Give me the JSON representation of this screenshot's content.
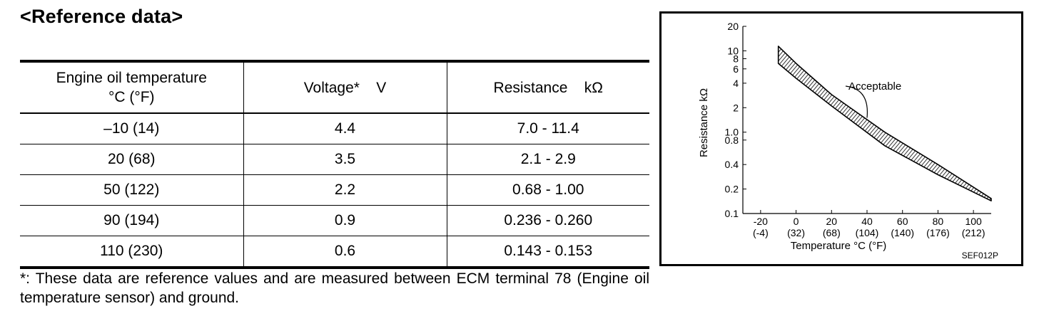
{
  "heading": "<Reference data>",
  "table": {
    "headers": [
      {
        "line1": "Engine oil temperature",
        "line2": "°C (°F)"
      },
      {
        "line1": "Voltage*    V",
        "line2": ""
      },
      {
        "line1": "Resistance    kΩ",
        "line2": ""
      }
    ],
    "rows": [
      {
        "temp": "–10 (14)",
        "voltage": "4.4",
        "resistance": "7.0 - 11.4"
      },
      {
        "temp": "20 (68)",
        "voltage": "3.5",
        "resistance": "2.1 - 2.9"
      },
      {
        "temp": "50 (122)",
        "voltage": "2.2",
        "resistance": "0.68 - 1.00"
      },
      {
        "temp": "90 (194)",
        "voltage": "0.9",
        "resistance": "0.236 - 0.260"
      },
      {
        "temp": "110 (230)",
        "voltage": "0.6",
        "resistance": "0.143 - 0.153"
      }
    ]
  },
  "note": "*: These data are reference values and are measured between ECM terminal 78 (Engine oil temperature sensor) and ground.",
  "chart_data": {
    "type": "area",
    "title": "",
    "xlabel": "Temperature °C (°F)",
    "ylabel": "Resistance kΩ",
    "xlim": [
      -30,
      110
    ],
    "ylim": [
      0.1,
      20
    ],
    "yscale": "log",
    "grid": false,
    "x_ticks": [
      {
        "value": -20,
        "label": "-20",
        "sub": "(-4)"
      },
      {
        "value": 0,
        "label": "0",
        "sub": "(32)"
      },
      {
        "value": 20,
        "label": "20",
        "sub": "(68)"
      },
      {
        "value": 40,
        "label": "40",
        "sub": "(104)"
      },
      {
        "value": 60,
        "label": "60",
        "sub": "(140)"
      },
      {
        "value": 80,
        "label": "80",
        "sub": "(176)"
      },
      {
        "value": 100,
        "label": "100",
        "sub": "(212)"
      }
    ],
    "y_ticks": [
      {
        "value": 20,
        "label": "20"
      },
      {
        "value": 10,
        "label": "10"
      },
      {
        "value": 8,
        "label": "8"
      },
      {
        "value": 6,
        "label": "6"
      },
      {
        "value": 4,
        "label": "4"
      },
      {
        "value": 2,
        "label": "2"
      },
      {
        "value": 1.0,
        "label": "1.0"
      },
      {
        "value": 0.8,
        "label": "0.8"
      },
      {
        "value": 0.4,
        "label": "0.4"
      },
      {
        "value": 0.2,
        "label": "0.2"
      },
      {
        "value": 0.1,
        "label": "0.1"
      }
    ],
    "band": {
      "name": "Acceptable",
      "x": [
        -10,
        0,
        20,
        50,
        80,
        110
      ],
      "upper": [
        11.4,
        7.0,
        2.9,
        1.0,
        0.4,
        0.153
      ],
      "lower": [
        7.0,
        4.6,
        2.1,
        0.68,
        0.3,
        0.143
      ]
    },
    "annotation": {
      "text": "Acceptable",
      "x": 40,
      "y": 1.5
    },
    "corner_label": "SEF012P"
  }
}
